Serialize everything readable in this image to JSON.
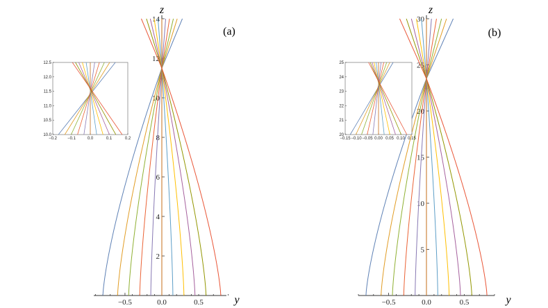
{
  "chart_data": [
    {
      "type": "line",
      "panel_label": "(a)",
      "xlabel": "y",
      "ylabel": "z",
      "xlim": [
        -0.9,
        0.9
      ],
      "ylim": [
        0,
        14
      ],
      "x_ticks": [
        "−0.5",
        "0.0",
        "0.5"
      ],
      "x_tick_values": [
        -0.5,
        0.0,
        0.5
      ],
      "y_ticks": [
        "2",
        "4",
        "6",
        "8",
        "10",
        "12",
        "14"
      ],
      "y_tick_values": [
        2,
        4,
        6,
        8,
        10,
        12,
        14
      ],
      "focus": {
        "y": 0.0,
        "z": 11.5
      },
      "ray_start_y": [
        -0.8,
        -0.6,
        -0.45,
        -0.3,
        -0.15,
        0.0,
        0.15,
        0.3,
        0.45,
        0.6,
        0.8
      ],
      "inset": {
        "xlim": [
          -0.2,
          0.2
        ],
        "ylim": [
          10.0,
          12.5
        ],
        "x_ticks": [
          "−0.2",
          "−0.1",
          "0.0",
          "0.1",
          "0.2"
        ],
        "x_tick_values": [
          -0.2,
          -0.1,
          0.0,
          0.1,
          0.2
        ],
        "y_ticks": [
          "10.0",
          "10.5",
          "11.0",
          "11.5",
          "12.0",
          "12.5"
        ],
        "y_tick_values": [
          10.0,
          10.5,
          11.0,
          11.5,
          12.0,
          12.5
        ]
      }
    },
    {
      "type": "line",
      "panel_label": "(b)",
      "xlabel": "y",
      "ylabel": "z",
      "xlim": [
        -0.9,
        0.9
      ],
      "ylim": [
        0,
        30
      ],
      "x_ticks": [
        "−0.5",
        "0.0",
        "0.5"
      ],
      "x_tick_values": [
        -0.5,
        0.0,
        0.5
      ],
      "y_ticks": [
        "5",
        "10",
        "15",
        "20",
        "25",
        "30"
      ],
      "y_tick_values": [
        5,
        10,
        15,
        20,
        25,
        30
      ],
      "focus": {
        "y": 0.0,
        "z": 23.5
      },
      "ray_start_y": [
        -0.8,
        -0.6,
        -0.45,
        -0.3,
        -0.15,
        0.0,
        0.15,
        0.3,
        0.45,
        0.6,
        0.8
      ],
      "inset": {
        "xlim": [
          -0.15,
          0.15
        ],
        "ylim": [
          20,
          25
        ],
        "x_ticks": [
          "−0.15",
          "−0.10",
          "−0.05",
          "0.00",
          "0.05",
          "0.10",
          "0.15"
        ],
        "x_tick_values": [
          -0.15,
          -0.1,
          -0.05,
          0.0,
          0.05,
          0.1,
          0.15
        ],
        "y_ticks": [
          "20",
          "21",
          "22",
          "23",
          "24",
          "25"
        ],
        "y_tick_values": [
          20,
          21,
          22,
          23,
          24,
          25
        ]
      }
    }
  ],
  "colors": [
    "#5e81b5",
    "#e19c24",
    "#8fb032",
    "#eb6235",
    "#8778b3",
    "#c56e1a",
    "#5d9ec7",
    "#ffbf00",
    "#a5609d",
    "#929600",
    "#e95536"
  ]
}
